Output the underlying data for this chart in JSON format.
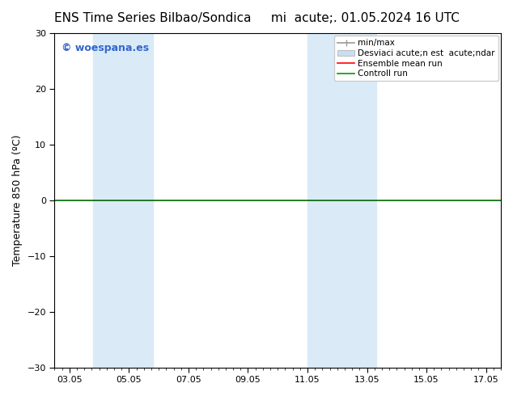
{
  "title": "ENS Time Series Bilbao/Sondica     mi  acute;. 01.05.2024 16 UTC",
  "ylabel": "Temperature 850 hPa (ºC)",
  "ylim": [
    -30,
    30
  ],
  "yticks": [
    -30,
    -20,
    -10,
    0,
    10,
    20,
    30
  ],
  "xlim": [
    0,
    15
  ],
  "xtick_positions": [
    0.5,
    2.5,
    4.5,
    6.5,
    8.5,
    10.5,
    12.5,
    14.5
  ],
  "xtick_labels": [
    "03.05",
    "05.05",
    "07.05",
    "09.05",
    "11.05",
    "13.05",
    "15.05",
    "17.05"
  ],
  "shaded_bands": [
    {
      "xmin": 1.3,
      "xmax": 3.3
    },
    {
      "xmin": 8.5,
      "xmax": 10.8
    }
  ],
  "shade_color": "#daeaf7",
  "hline_y": 0,
  "hline_color": "#006600",
  "hline_lw": 1.2,
  "background_color": "white",
  "plot_bg_color": "white",
  "legend_label_minmax": "min/max",
  "legend_label_std": "Desviaci acute;n est  acute;ndar",
  "legend_label_ens": "Ensemble mean run",
  "legend_label_ctrl": "Controll run",
  "legend_color_minmax": "#999999",
  "legend_color_std": "#c8dff0",
  "legend_color_ens": "red",
  "legend_color_ctrl": "#009900",
  "watermark": "© woespana.es",
  "watermark_color": "#3366cc",
  "watermark_fontsize": 9,
  "title_fontsize": 11,
  "ylabel_fontsize": 9,
  "tick_fontsize": 8,
  "legend_fontsize": 7.5
}
